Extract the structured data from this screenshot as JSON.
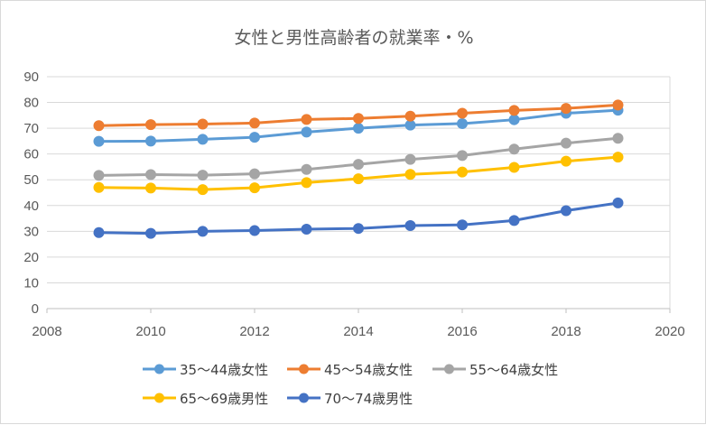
{
  "chart_data": {
    "type": "line",
    "title": "女性と男性高齢者の就業率・%",
    "xlabel": "",
    "ylabel": "",
    "xlim": [
      2008,
      2020
    ],
    "ylim": [
      0,
      90
    ],
    "x_ticks": [
      2008,
      2010,
      2012,
      2014,
      2016,
      2018,
      2020
    ],
    "y_ticks": [
      0,
      10,
      20,
      30,
      40,
      50,
      60,
      70,
      80,
      90
    ],
    "x_tick_labels": [
      "2008",
      "2010",
      "2012",
      "2014",
      "2016",
      "2018",
      "2020"
    ],
    "y_tick_labels": [
      "0",
      "10",
      "20",
      "30",
      "40",
      "50",
      "60",
      "70",
      "80",
      "90"
    ],
    "grid": "horizontal",
    "legend_position": "bottom",
    "x": [
      2009,
      2010,
      2011,
      2012,
      2013,
      2014,
      2015,
      2016,
      2017,
      2018,
      2019
    ],
    "series": [
      {
        "name": "35～44歳女性",
        "color": "#5B9BD5",
        "values": [
          64.9,
          65.0,
          65.7,
          66.5,
          68.5,
          70.0,
          71.2,
          71.8,
          73.3,
          75.8,
          77.0
        ]
      },
      {
        "name": "45～54歳女性",
        "color": "#ED7D31",
        "values": [
          71.0,
          71.4,
          71.6,
          72.0,
          73.4,
          73.8,
          74.7,
          75.8,
          76.9,
          77.7,
          79.0
        ]
      },
      {
        "name": "55～64歳女性",
        "color": "#A5A5A5",
        "values": [
          51.7,
          52.0,
          51.8,
          52.3,
          54.0,
          56.0,
          57.9,
          59.4,
          61.9,
          64.2,
          66.1
        ]
      },
      {
        "name": "65～69歳男性",
        "color": "#FFC000",
        "values": [
          47.0,
          46.8,
          46.2,
          46.9,
          48.9,
          50.4,
          52.1,
          53.0,
          54.8,
          57.2,
          58.8
        ]
      },
      {
        "name": "70～74歳男性",
        "color": "#4472C4",
        "values": [
          29.5,
          29.2,
          30.0,
          30.3,
          30.8,
          31.1,
          32.2,
          32.5,
          34.2,
          38.0,
          41.0
        ]
      }
    ]
  }
}
